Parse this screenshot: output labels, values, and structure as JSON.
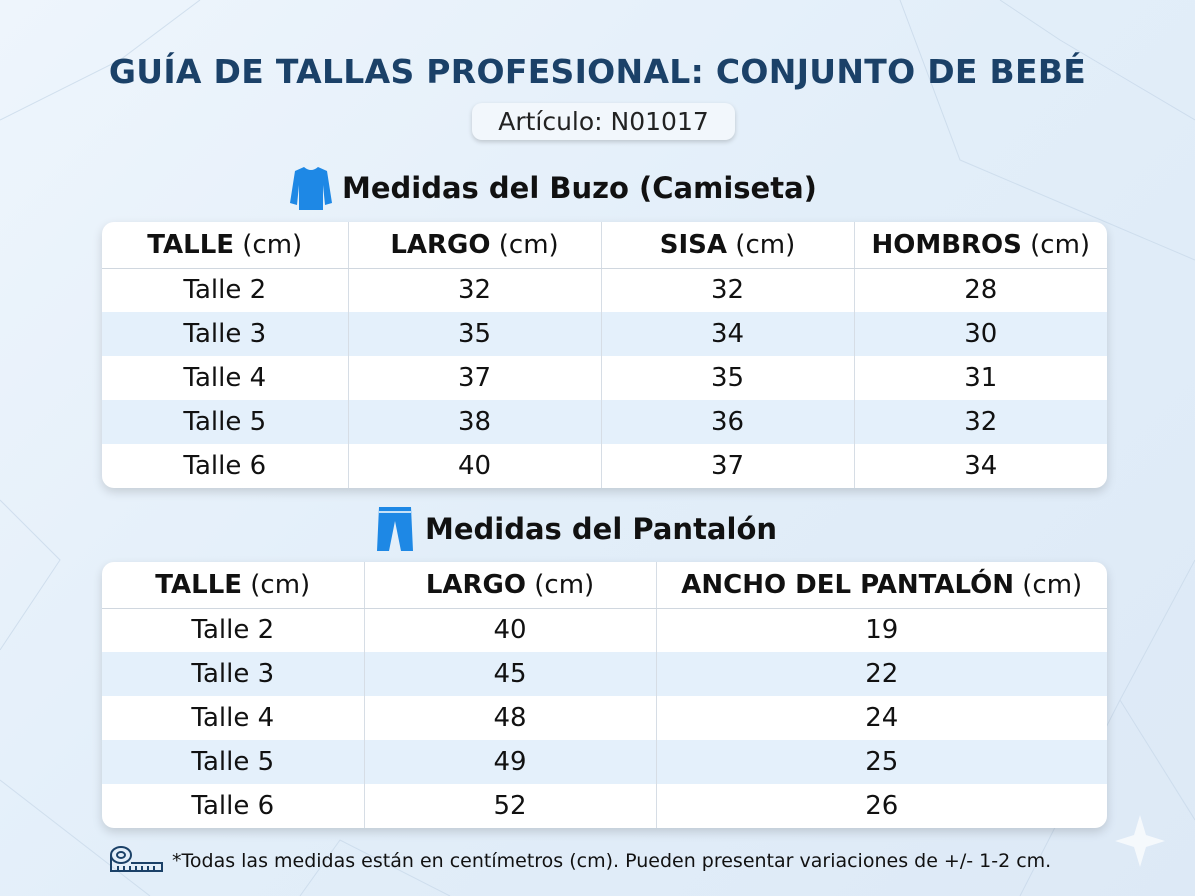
{
  "title": "GUÍA DE TALLAS PROFESIONAL: CONJUNTO DE BEBÉ",
  "article": "Artículo: N01017",
  "shirt": {
    "heading": "Medidas del Buzo (Camiseta)",
    "headers": [
      [
        "TALLE",
        "(cm)"
      ],
      [
        "LARGO",
        "(cm)"
      ],
      [
        "SISA",
        "(cm)"
      ],
      [
        "HOMBROS",
        "(cm)"
      ]
    ],
    "rows": [
      [
        "Talle 2",
        "32",
        "32",
        "28"
      ],
      [
        "Talle 3",
        "35",
        "34",
        "30"
      ],
      [
        "Talle 4",
        "37",
        "35",
        "31"
      ],
      [
        "Talle 5",
        "38",
        "36",
        "32"
      ],
      [
        "Talle 6",
        "40",
        "37",
        "34"
      ]
    ]
  },
  "pants": {
    "heading": "Medidas del Pantalón",
    "headers": [
      [
        "TALLE",
        "(cm)"
      ],
      [
        "LARGO",
        "(cm)"
      ],
      [
        "ANCHO DEL PANTALÓN",
        "(cm)"
      ]
    ],
    "rows": [
      [
        "Talle 2",
        "40",
        "19"
      ],
      [
        "Talle 3",
        "45",
        "22"
      ],
      [
        "Talle 4",
        "48",
        "24"
      ],
      [
        "Talle 5",
        "49",
        "25"
      ],
      [
        "Talle 6",
        "52",
        "26"
      ]
    ]
  },
  "footnote": "*Todas las medidas están en centímetros (cm). Pueden presentar variaciones de +/- 1-2 cm.",
  "colors": {
    "title": "#1b4168",
    "icon": "#1e88e5",
    "alt_row": "#e4f0fb"
  }
}
